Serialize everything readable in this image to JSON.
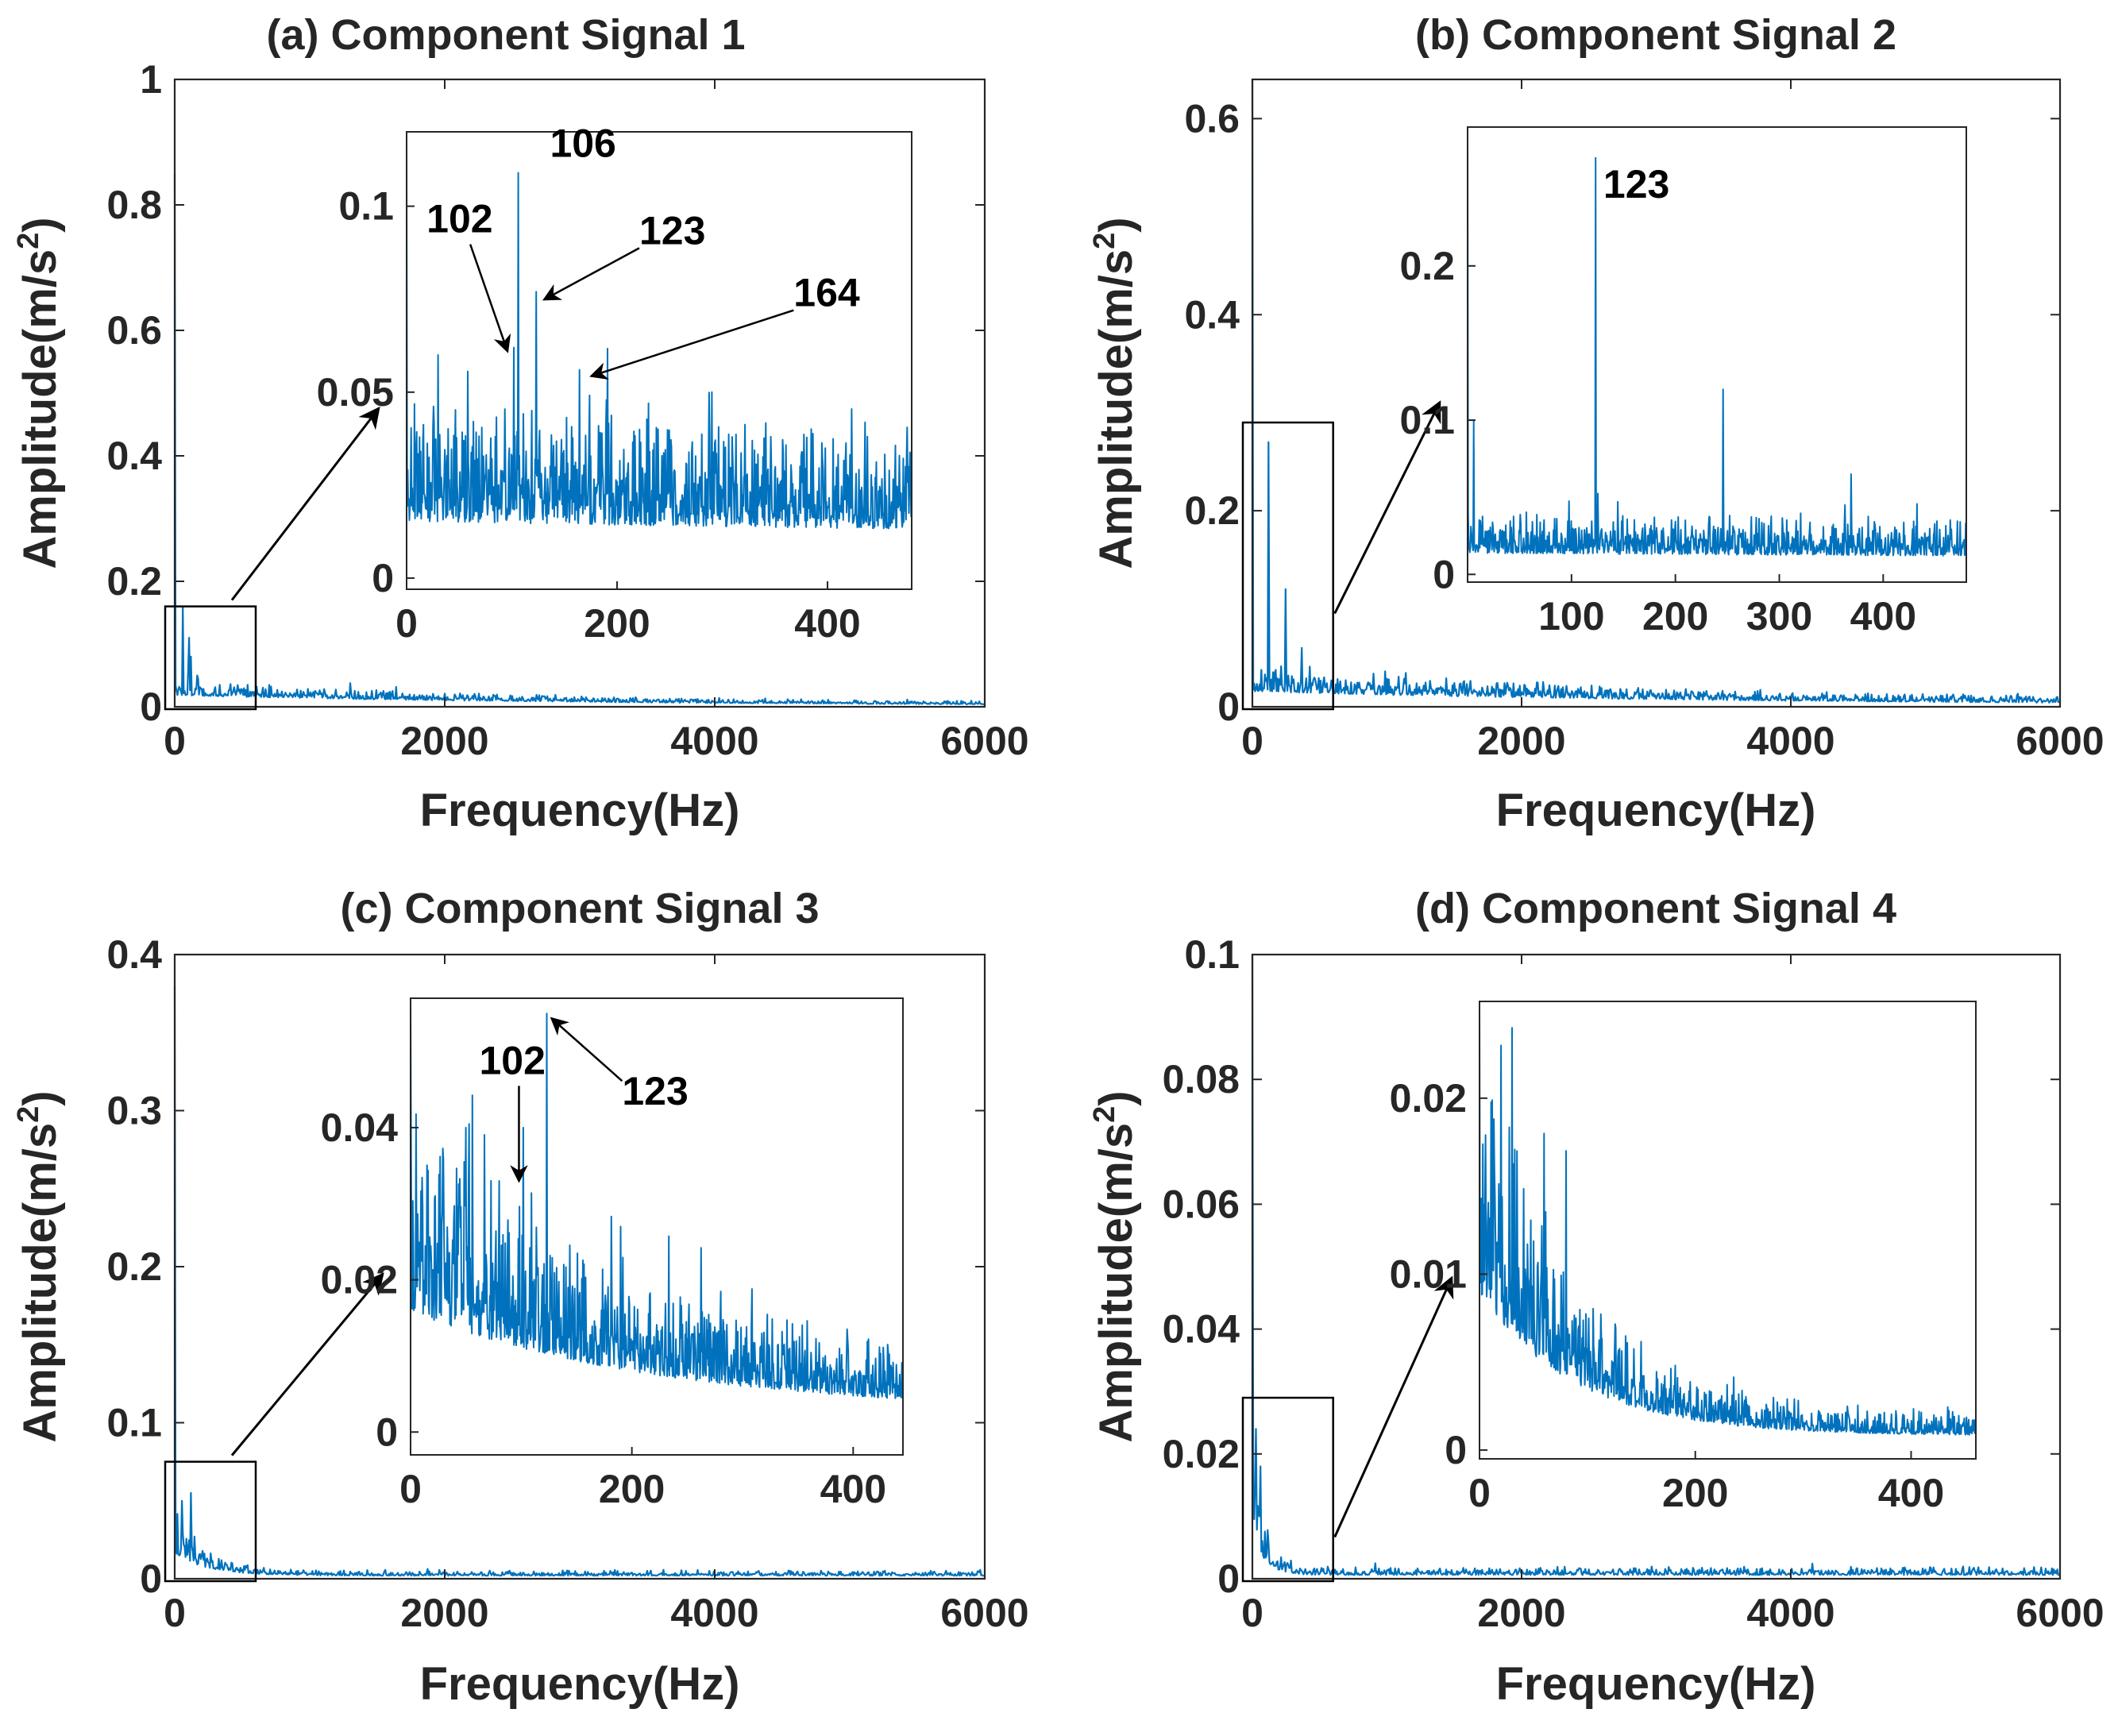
{
  "colors": {
    "line": "#0072BD",
    "axis": "#262626",
    "annotation": "#000000",
    "background": "#ffffff"
  },
  "chart_data": [
    {
      "panel": "a",
      "type": "line",
      "title": "(a) Component Signal 1",
      "xlabel": "Frequency(Hz)",
      "ylabel_main": "Amplitude(m/s",
      "ylabel_sup": "2",
      "ylabel_close": ")",
      "xlim": [
        0,
        6000
      ],
      "ylim": [
        0,
        1
      ],
      "xticks": [
        0,
        2000,
        4000,
        6000
      ],
      "xtick_labels": [
        "0",
        "2000",
        "4000",
        "6000"
      ],
      "yticks": [
        0,
        0.2,
        0.4,
        0.6,
        0.8,
        1
      ],
      "ytick_labels": [
        "0",
        "0.2",
        "0.4",
        "0.6",
        "0.8",
        "1"
      ],
      "grid": false,
      "spectrum": {
        "peaks": [
          [
            0,
            0.85
          ],
          [
            60,
            0.16
          ],
          [
            102,
            0.06
          ],
          [
            106,
            0.11
          ],
          [
            123,
            0.08
          ],
          [
            164,
            0.05
          ]
        ],
        "base": 0.022,
        "noise": 0.012,
        "decay": 3000,
        "floor": 0.002
      },
      "zoom_box": {
        "x": [
          0,
          600
        ],
        "y": [
          0,
          0.16
        ]
      },
      "inset": {
        "xlim": [
          0,
          480
        ],
        "ylim": [
          -0.003,
          0.12
        ],
        "xticks": [
          0,
          200,
          400
        ],
        "xtick_labels": [
          "0",
          "200",
          "400"
        ],
        "yticks": [
          0,
          0.05,
          0.1
        ],
        "ytick_labels": [
          "0",
          "0.05",
          "0.1"
        ],
        "spectrum": {
          "peaks": [
            [
              0,
              0.12
            ],
            [
              30,
              0.06
            ],
            [
              102,
              0.062
            ],
            [
              106,
              0.109
            ],
            [
              123,
              0.077
            ],
            [
              164,
              0.056
            ],
            [
              230,
              0.047
            ],
            [
              290,
              0.05
            ]
          ],
          "base": 0.02,
          "noise": 0.016,
          "decay": 3000,
          "floor": 0.002
        },
        "annotations": [
          {
            "text": "102",
            "x": 102,
            "y": 0.062
          },
          {
            "text": "106",
            "x": 106,
            "y": 0.109
          },
          {
            "text": "123",
            "x": 123,
            "y": 0.077
          },
          {
            "text": "164",
            "x": 164,
            "y": 0.056
          }
        ]
      }
    },
    {
      "panel": "b",
      "type": "line",
      "title": "(b) Component Signal 2",
      "xlabel": "Frequency(Hz)",
      "ylabel_main": "Amplitude(m/s",
      "ylabel_sup": "2",
      "ylabel_close": ")",
      "xlim": [
        0,
        6000
      ],
      "ylim": [
        0,
        0.64
      ],
      "xticks": [
        0,
        2000,
        4000,
        6000
      ],
      "xtick_labels": [
        "0",
        "2000",
        "4000",
        "6000"
      ],
      "yticks": [
        0,
        0.2,
        0.4,
        0.6
      ],
      "ytick_labels": [
        "0",
        "0.2",
        "0.4",
        "0.6"
      ],
      "grid": false,
      "spectrum": {
        "peaks": [
          [
            0,
            0.64
          ],
          [
            123,
            0.27
          ],
          [
            246,
            0.12
          ],
          [
            369,
            0.06
          ]
        ],
        "base": 0.02,
        "noise": 0.014,
        "decay": 3500,
        "floor": 0.002
      },
      "zoom_box": {
        "x": [
          0,
          600
        ],
        "y": [
          0,
          0.29
        ]
      },
      "inset": {
        "xlim": [
          0,
          480
        ],
        "ylim": [
          -0.005,
          0.29
        ],
        "xticks": [
          100,
          200,
          300,
          400
        ],
        "xtick_labels": [
          "100",
          "200",
          "300",
          "400"
        ],
        "yticks": [
          0,
          0.1,
          0.2
        ],
        "ytick_labels": [
          "0",
          "0.1",
          "0.2"
        ],
        "spectrum": {
          "peaks": [
            [
              0,
              0.29
            ],
            [
              6,
              0.1
            ],
            [
              123,
              0.27
            ],
            [
              246,
              0.12
            ],
            [
              369,
              0.065
            ]
          ],
          "base": 0.018,
          "noise": 0.014,
          "decay": 3000,
          "floor": 0.002
        },
        "annotations": [
          {
            "text": "123",
            "x": 123,
            "y": 0.27
          }
        ]
      }
    },
    {
      "panel": "c",
      "type": "line",
      "title": "(c) Component Signal 3",
      "xlabel": "Frequency(Hz)",
      "ylabel_main": "Amplitude(m/s",
      "ylabel_sup": "2",
      "ylabel_close": ")",
      "xlim": [
        0,
        6000
      ],
      "ylim": [
        0,
        0.4
      ],
      "xticks": [
        0,
        2000,
        4000,
        6000
      ],
      "xtick_labels": [
        "0",
        "2000",
        "4000",
        "6000"
      ],
      "yticks": [
        0,
        0.1,
        0.2,
        0.3,
        0.4
      ],
      "ytick_labels": [
        "0",
        "0.1",
        "0.2",
        "0.3",
        "0.4"
      ],
      "grid": false,
      "spectrum": {
        "peaks": [
          [
            0,
            0.38
          ],
          [
            50,
            0.05
          ],
          [
            123,
            0.055
          ]
        ],
        "base": 0.02,
        "noise": 0.014,
        "decay": 250,
        "floor": 0.0025
      },
      "zoom_box": {
        "x": [
          0,
          600
        ],
        "y": [
          0,
          0.075
        ]
      },
      "inset": {
        "xlim": [
          0,
          445
        ],
        "ylim": [
          -0.003,
          0.057
        ],
        "xticks": [
          0,
          200,
          400
        ],
        "xtick_labels": [
          "0",
          "200",
          "400"
        ],
        "yticks": [
          0,
          0.02,
          0.04
        ],
        "ytick_labels": [
          "0",
          "0.02",
          "0.04"
        ],
        "spectrum": {
          "peaks": [
            [
              0,
              0.057
            ],
            [
              50,
              0.04
            ],
            [
              80,
              0.033
            ],
            [
              102,
              0.04
            ],
            [
              123,
              0.055
            ],
            [
              190,
              0.027
            ]
          ],
          "base": 0.02,
          "noise": 0.014,
          "decay": 230,
          "floor": 0.003
        },
        "annotations": [
          {
            "text": "102",
            "x": 80,
            "y": 0.034
          },
          {
            "text": "123",
            "x": 123,
            "y": 0.055
          }
        ]
      }
    },
    {
      "panel": "d",
      "type": "line",
      "title": "(d) Component Signal 4",
      "xlabel": "Frequency(Hz)",
      "ylabel_main": "Amplitude(m/s",
      "ylabel_sup": "2",
      "ylabel_close": ")",
      "xlim": [
        0,
        6000
      ],
      "ylim": [
        0,
        0.1
      ],
      "xticks": [
        0,
        2000,
        4000,
        6000
      ],
      "xtick_labels": [
        "0",
        "2000",
        "4000",
        "6000"
      ],
      "yticks": [
        0,
        0.02,
        0.04,
        0.06,
        0.08,
        0.1
      ],
      "ytick_labels": [
        "0",
        "0.02",
        "0.04",
        "0.06",
        "0.08",
        "0.1"
      ],
      "grid": false,
      "spectrum": {
        "peaks": [
          [
            0,
            0.1
          ],
          [
            25,
            0.024
          ],
          [
            60,
            0.018
          ]
        ],
        "base": 0.01,
        "noise": 0.008,
        "decay": 90,
        "floor": 0.0008
      },
      "zoom_box": {
        "x": [
          0,
          600
        ],
        "y": [
          0,
          0.029
        ]
      },
      "inset": {
        "xlim": [
          0,
          460
        ],
        "ylim": [
          -0.0005,
          0.0255
        ],
        "xticks": [
          0,
          200,
          400
        ],
        "xtick_labels": [
          "0",
          "200",
          "400"
        ],
        "yticks": [
          0,
          0.01,
          0.02
        ],
        "ytick_labels": [
          "0",
          "0.01",
          "0.02"
        ],
        "spectrum": {
          "peaks": [
            [
              0,
              0.025
            ],
            [
              20,
              0.023
            ],
            [
              30,
              0.024
            ],
            [
              60,
              0.018
            ],
            [
              80,
              0.017
            ]
          ],
          "base": 0.011,
          "noise": 0.007,
          "decay": 90,
          "floor": 0.001
        },
        "annotations": []
      }
    }
  ]
}
